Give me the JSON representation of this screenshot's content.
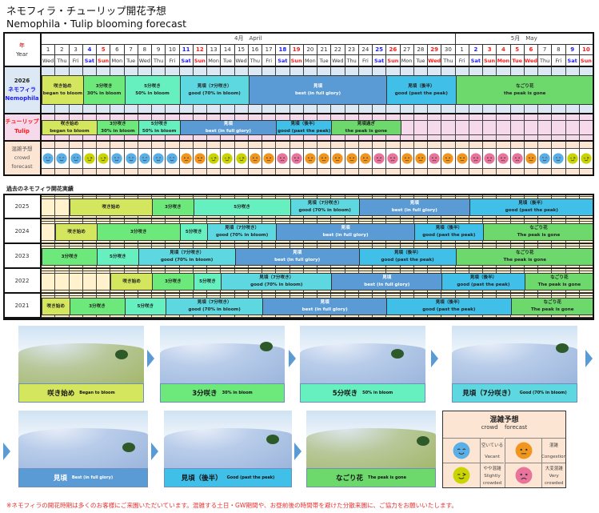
{
  "title_ja": "ネモフィラ・チューリップ開花予想",
  "title_en": "Nemophila・Tulip blooming forecast",
  "colors": {
    "began": "#d4e65e",
    "p30": "#6de87a",
    "p50": "#66f0c0",
    "good70": "#5ed8e0",
    "best": "#5b9bd5",
    "past": "#40c0e8",
    "gone": "#6dd96d",
    "nemophila_bg": "#dce9f5",
    "tulip_bg": "#f7d9ec",
    "crowd_bg": "#fde5d3",
    "history_bg": "#fff2cc",
    "sat": "#1a1aff",
    "sun": "#ff1a1a"
  },
  "crowd_colors": {
    "vacant": "#5aafe6",
    "slightly": "#c9d400",
    "congestion": "#f0961e",
    "very": "#e8739b"
  },
  "forecast": {
    "year_label_ja": "年",
    "year_label_en": "Year",
    "months": [
      {
        "label": "4月　April",
        "days": 30
      },
      {
        "label": "5月　May",
        "days": 10
      }
    ],
    "days": [
      {
        "d": "1",
        "w": "Wed",
        "t": "wk"
      },
      {
        "d": "2",
        "w": "Thu",
        "t": "wk"
      },
      {
        "d": "3",
        "w": "Fri",
        "t": "wk"
      },
      {
        "d": "4",
        "w": "Sat",
        "t": "sat"
      },
      {
        "d": "5",
        "w": "Sun",
        "t": "sun"
      },
      {
        "d": "6",
        "w": "Mon",
        "t": "wk"
      },
      {
        "d": "7",
        "w": "Tue",
        "t": "wk"
      },
      {
        "d": "8",
        "w": "Wed",
        "t": "wk"
      },
      {
        "d": "9",
        "w": "Thu",
        "t": "wk"
      },
      {
        "d": "10",
        "w": "Fri",
        "t": "wk"
      },
      {
        "d": "11",
        "w": "Sat",
        "t": "sat"
      },
      {
        "d": "12",
        "w": "Sun",
        "t": "sun"
      },
      {
        "d": "13",
        "w": "Mon",
        "t": "wk"
      },
      {
        "d": "14",
        "w": "Tue",
        "t": "wk"
      },
      {
        "d": "15",
        "w": "Wed",
        "t": "wk"
      },
      {
        "d": "16",
        "w": "Thu",
        "t": "wk"
      },
      {
        "d": "17",
        "w": "Fri",
        "t": "wk"
      },
      {
        "d": "18",
        "w": "Sat",
        "t": "sat"
      },
      {
        "d": "19",
        "w": "Sun",
        "t": "sun"
      },
      {
        "d": "20",
        "w": "Mon",
        "t": "wk"
      },
      {
        "d": "21",
        "w": "Tue",
        "t": "wk"
      },
      {
        "d": "22",
        "w": "Wed",
        "t": "wk"
      },
      {
        "d": "23",
        "w": "Thu",
        "t": "wk"
      },
      {
        "d": "24",
        "w": "Fri",
        "t": "wk"
      },
      {
        "d": "25",
        "w": "Sat",
        "t": "sat"
      },
      {
        "d": "26",
        "w": "Sun",
        "t": "sun"
      },
      {
        "d": "27",
        "w": "Mon",
        "t": "wk"
      },
      {
        "d": "28",
        "w": "Tue",
        "t": "wk"
      },
      {
        "d": "29",
        "w": "Wed",
        "t": "sun"
      },
      {
        "d": "30",
        "w": "Thu",
        "t": "wk"
      },
      {
        "d": "1",
        "w": "Fri",
        "t": "wk"
      },
      {
        "d": "2",
        "w": "Sat",
        "t": "sat"
      },
      {
        "d": "3",
        "w": "Sun",
        "t": "sun"
      },
      {
        "d": "4",
        "w": "Mon",
        "t": "sun"
      },
      {
        "d": "5",
        "w": "Tue",
        "t": "sun"
      },
      {
        "d": "6",
        "w": "Wed",
        "t": "sun"
      },
      {
        "d": "7",
        "w": "Thu",
        "t": "wk"
      },
      {
        "d": "8",
        "w": "Fri",
        "t": "wk"
      },
      {
        "d": "9",
        "w": "Sat",
        "t": "sat"
      },
      {
        "d": "10",
        "w": "Sun",
        "t": "sun"
      }
    ],
    "nemophila": {
      "year": "2026",
      "name_ja": "ネモフィラ",
      "name_en": "Nemophila",
      "bands": [
        {
          "ja": "咲き始め",
          "en": "began to bloom",
          "stage": "began",
          "from": "Apr 1",
          "to": "Apr 3"
        },
        {
          "ja": "3分咲き",
          "en": "30% in bloom",
          "stage": "p30",
          "from": "Apr 4",
          "to": "Apr 6"
        },
        {
          "ja": "5分咲き",
          "en": "50% in bloom",
          "stage": "p50",
          "from": "Apr 7",
          "to": "Apr 10"
        },
        {
          "ja": "見頃（7分咲き）",
          "en": "good (70% in bloom)",
          "stage": "good70",
          "from": "Apr 11",
          "to": "Apr 15"
        },
        {
          "ja": "見頃",
          "en": "best (in full glory)",
          "stage": "best",
          "from": "Apr 16",
          "to": "Apr 25"
        },
        {
          "ja": "見頃（後半）",
          "en": "good (past the peak)",
          "stage": "past",
          "from": "Apr 26",
          "to": "Apr 30"
        },
        {
          "ja": "なごり花",
          "en": "the peak is gone",
          "stage": "gone",
          "from": "May 1",
          "to": "May 10"
        }
      ]
    },
    "tulip": {
      "name_ja": "チューリップ",
      "name_en": "Tulip",
      "bands": [
        {
          "ja": "咲き始め",
          "en": "began to bloom",
          "stage": "began",
          "from": "Apr 1",
          "to": "Apr 4"
        },
        {
          "ja": "3分咲き",
          "en": "30% in bloom",
          "stage": "p30",
          "from": "Apr 5",
          "to": "Apr 7"
        },
        {
          "ja": "5分咲き",
          "en": "50% in bloom",
          "stage": "p50",
          "from": "Apr 8",
          "to": "Apr 10"
        },
        {
          "ja": "見頃",
          "en": "best (in full glory)",
          "stage": "best",
          "from": "Apr 11",
          "to": "Apr 17"
        },
        {
          "ja": "見頃（後半）",
          "en": "good (past the peak)",
          "stage": "past",
          "from": "Apr 18",
          "to": "Apr 21"
        },
        {
          "ja": "見頃過ぎ",
          "en": "the peak is gone",
          "stage": "gone",
          "from": "Apr 22",
          "to": "Apr 26"
        }
      ]
    },
    "crowd": {
      "label_ja": "混雑予想",
      "label_en1": "crowd",
      "label_en2": "forecast",
      "values": [
        "vacant",
        "vacant",
        "vacant",
        "slightly",
        "slightly",
        "vacant",
        "vacant",
        "vacant",
        "vacant",
        "vacant",
        "congestion",
        "congestion",
        "slightly",
        "slightly",
        "slightly",
        "congestion",
        "congestion",
        "very",
        "very",
        "congestion",
        "congestion",
        "congestion",
        "congestion",
        "congestion",
        "very",
        "very",
        "congestion",
        "congestion",
        "very",
        "congestion",
        "congestion",
        "very",
        "very",
        "very",
        "very",
        "congestion",
        "vacant",
        "vacant",
        "slightly",
        "slightly"
      ]
    }
  },
  "history": {
    "title": "過去のネモフィラ開花実績",
    "rows": [
      {
        "year": "2025",
        "bands": [
          {
            "ja": "咲き始め",
            "en": "",
            "stage": "began",
            "from": "Apr 3",
            "to": "Apr 8"
          },
          {
            "ja": "3分咲き",
            "en": "",
            "stage": "p30",
            "from": "Apr 9",
            "to": "Apr 11"
          },
          {
            "ja": "5分咲き",
            "en": "",
            "stage": "p50",
            "from": "Apr 12",
            "to": "Apr 18"
          },
          {
            "ja": "見頃（7分咲き）",
            "en": "good (70% in bloom)",
            "stage": "good70",
            "from": "Apr 19",
            "to": "Apr 23"
          },
          {
            "ja": "見頃",
            "en": "best (in full glory)",
            "stage": "best",
            "from": "Apr 24",
            "to": "May 1"
          },
          {
            "ja": "見頃（後半）",
            "en": "good (past the peak)",
            "stage": "past",
            "from": "May 2",
            "to": "May 10"
          }
        ]
      },
      {
        "year": "2024",
        "bands": [
          {
            "ja": "咲き始め",
            "en": "",
            "stage": "began",
            "from": "Apr 2",
            "to": "Apr 4"
          },
          {
            "ja": "3分咲き",
            "en": "",
            "stage": "p30",
            "from": "Apr 5",
            "to": "Apr 10"
          },
          {
            "ja": "5分咲き",
            "en": "",
            "stage": "p50",
            "from": "Apr 11",
            "to": "Apr 12"
          },
          {
            "ja": "見頃（7分咲き）",
            "en": "good (70% in bloom)",
            "stage": "good70",
            "from": "Apr 13",
            "to": "Apr 17"
          },
          {
            "ja": "見頃",
            "en": "best (in full glory)",
            "stage": "best",
            "from": "Apr 18",
            "to": "Apr 27"
          },
          {
            "ja": "見頃（後半）",
            "en": "good (past the peak)",
            "stage": "past",
            "from": "Apr 28",
            "to": "May 2"
          },
          {
            "ja": "なごり花",
            "en": "The peak is gone",
            "stage": "gone",
            "from": "May 3",
            "to": "May 10"
          }
        ]
      },
      {
        "year": "2023",
        "bands": [
          {
            "ja": "3分咲き",
            "en": "",
            "stage": "p30",
            "from": "Apr 1",
            "to": "Apr 4"
          },
          {
            "ja": "5分咲き",
            "en": "",
            "stage": "p50",
            "from": "Apr 5",
            "to": "Apr 7"
          },
          {
            "ja": "見頃（7分咲き）",
            "en": "good (70% in bloom)",
            "stage": "good70",
            "from": "Apr 8",
            "to": "Apr 14"
          },
          {
            "ja": "見頃",
            "en": "best (in full glory)",
            "stage": "best",
            "from": "Apr 15",
            "to": "Apr 23"
          },
          {
            "ja": "見頃（後半）",
            "en": "good (past the peak)",
            "stage": "past",
            "from": "Apr 24",
            "to": "Apr 30"
          },
          {
            "ja": "なごり花",
            "en": "The peak is gone",
            "stage": "gone",
            "from": "May 1",
            "to": "May 10"
          }
        ]
      },
      {
        "year": "2022",
        "bands": [
          {
            "ja": "咲き始め",
            "en": "",
            "stage": "began",
            "from": "Apr 6",
            "to": "Apr 8"
          },
          {
            "ja": "3分咲き",
            "en": "",
            "stage": "p30",
            "from": "Apr 9",
            "to": "Apr 11"
          },
          {
            "ja": "5分咲き",
            "en": "",
            "stage": "p50",
            "from": "Apr 12",
            "to": "Apr 13"
          },
          {
            "ja": "見頃（7分咲き）",
            "en": "good (70% in bloom)",
            "stage": "good70",
            "from": "Apr 14",
            "to": "Apr 21"
          },
          {
            "ja": "見頃",
            "en": "best (in full glory)",
            "stage": "best",
            "from": "Apr 22",
            "to": "Apr 29"
          },
          {
            "ja": "見頃（後半）",
            "en": "good (past the peak)",
            "stage": "past",
            "from": "Apr 30",
            "to": "May 5"
          },
          {
            "ja": "なごり花",
            "en": "The peak is gone",
            "stage": "gone",
            "from": "May 6",
            "to": "May 10"
          }
        ]
      },
      {
        "year": "2021",
        "bands": [
          {
            "ja": "咲き始め",
            "en": "",
            "stage": "began",
            "from": "Apr 1",
            "to": "Apr 2"
          },
          {
            "ja": "3分咲き",
            "en": "",
            "stage": "p30",
            "from": "Apr 3",
            "to": "Apr 6"
          },
          {
            "ja": "5分咲き",
            "en": "",
            "stage": "p50",
            "from": "Apr 7",
            "to": "Apr 9"
          },
          {
            "ja": "見頃（7分咲き）",
            "en": "good (70% in bloom)",
            "stage": "good70",
            "from": "Apr 10",
            "to": "Apr 16"
          },
          {
            "ja": "見頃",
            "en": "best (in full glory)",
            "stage": "best",
            "from": "Apr 17",
            "to": "Apr 25"
          },
          {
            "ja": "見頃（後半）",
            "en": "good (past the peak)",
            "stage": "past",
            "from": "Apr 26",
            "to": "May 4"
          },
          {
            "ja": "なごり花",
            "en": "The peak is gone",
            "stage": "gone",
            "from": "May 5",
            "to": "May 10"
          }
        ]
      }
    ]
  },
  "photos": [
    {
      "ja": "咲き始め",
      "en": "Began to bloom",
      "stage": "began"
    },
    {
      "ja": "3分咲き",
      "en": "30% in bloom",
      "stage": "p30"
    },
    {
      "ja": "5分咲き",
      "en": "50% in bloom",
      "stage": "p50"
    },
    {
      "ja": "見頃（7分咲き）",
      "en": "Good (70% in bloom)",
      "stage": "good70"
    },
    {
      "ja": "見頃",
      "en": "Best (in full glory)",
      "stage": "best"
    },
    {
      "ja": "見頃（後半）",
      "en": "Good (past the peak)",
      "stage": "past"
    },
    {
      "ja": "なごり花",
      "en": "The peak is gone",
      "stage": "gone"
    }
  ],
  "legend": {
    "title_ja": "混雑予想",
    "title_en1": "crowd",
    "title_en2": "forecast",
    "items": [
      {
        "type": "vacant",
        "ja": "空いている",
        "en1": "Vacant",
        "en2": ""
      },
      {
        "type": "congestion",
        "ja": "混雑",
        "en1": "Congestion",
        "en2": ""
      },
      {
        "type": "slightly",
        "ja": "やや混雑",
        "en1": "Slightly",
        "en2": "crowded"
      },
      {
        "type": "very",
        "ja": "大変混雑",
        "en1": "Very",
        "en2": "crowded"
      }
    ]
  },
  "footer_note": "※ネモフィラの開花時期は多くのお客様にご来園いただいています。混雑する土日・GW期間や、お昼前後の時間帯を避けた分散来園に、ご協力をお願いいたします。"
}
